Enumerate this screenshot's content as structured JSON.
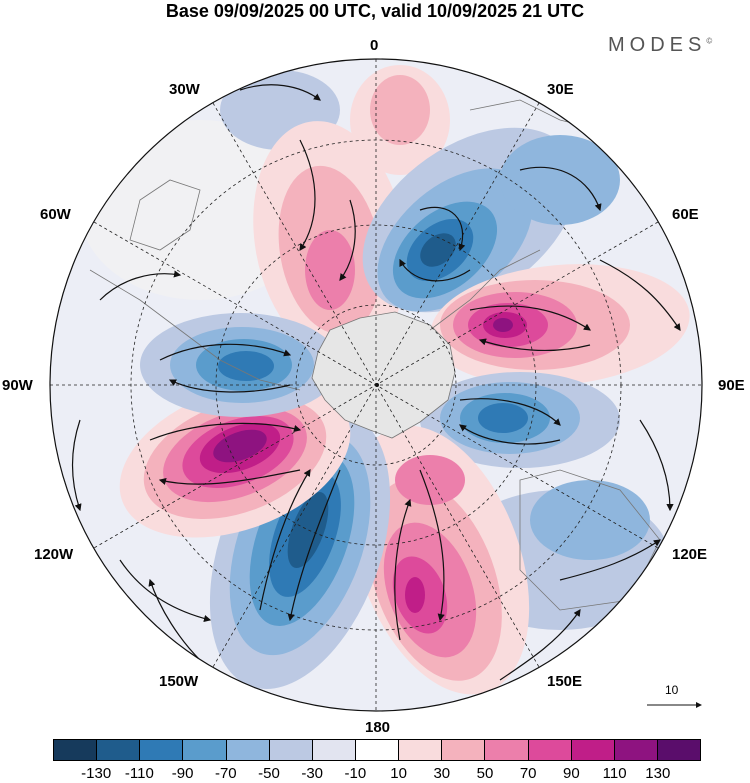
{
  "title": "Base 09/09/2025 00 UTC, valid 10/09/2025 21 UTC",
  "brand": "MODES",
  "brand_mark": "©",
  "longitude_labels": {
    "lon_0": "0",
    "lon_30e": "30E",
    "lon_60e": "60E",
    "lon_90e": "90E",
    "lon_120e": "120E",
    "lon_150e": "150E",
    "lon_180": "180",
    "lon_150w": "150W",
    "lon_120w": "120W",
    "lon_90w": "90W",
    "lon_60w": "60W",
    "lon_30w": "30W"
  },
  "reference_vector": {
    "label": "10"
  },
  "colorbar": {
    "colors": [
      "#163a5c",
      "#1f5c8c",
      "#2f7ab5",
      "#5a9ccc",
      "#8fb6dd",
      "#bcc9e3",
      "#e2e4f0",
      "#ffffff",
      "#f9dcdd",
      "#f4b2bd",
      "#ec7fab",
      "#dd4a9b",
      "#c01e88",
      "#8e1380",
      "#5a0d6b"
    ],
    "ticks": [
      "-130",
      "-110",
      "-90",
      "-70",
      "-50",
      "-30",
      "-10",
      "10",
      "30",
      "50",
      "70",
      "90",
      "110",
      "130"
    ]
  },
  "map_features": {
    "blue_centers": [
      "blue-anomaly-1",
      "blue-anomaly-2",
      "blue-anomaly-3",
      "blue-anomaly-4"
    ],
    "pink_centers": [
      "pink-anomaly-1",
      "pink-anomaly-2",
      "pink-anomaly-3",
      "pink-anomaly-4"
    ]
  }
}
